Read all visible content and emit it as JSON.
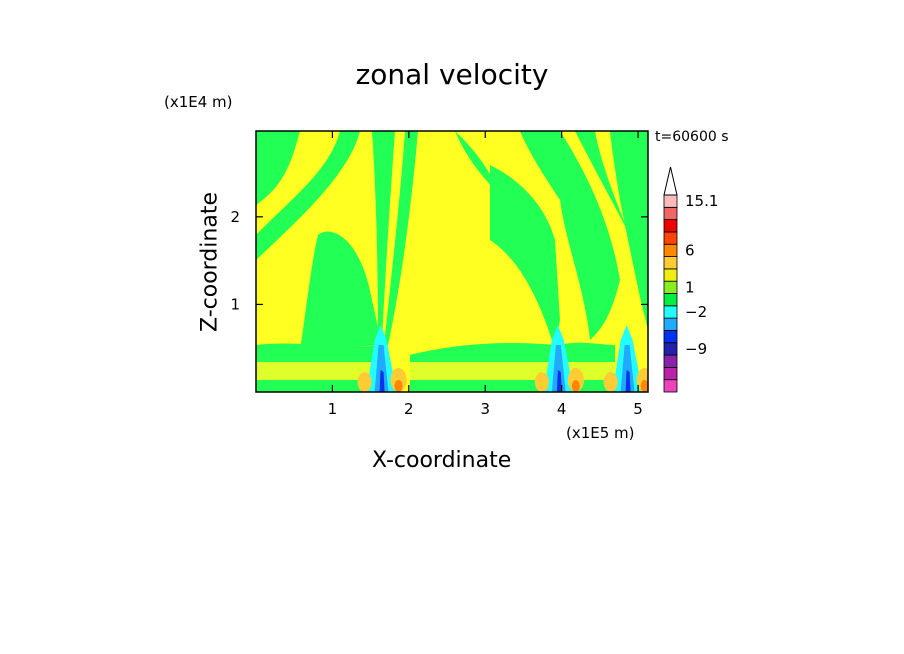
{
  "chart_data": {
    "type": "heatmap",
    "title": "zonal velocity",
    "xlabel": "X-coordinate",
    "ylabel": "Z-coordinate",
    "x_unit": "(x1E5 m)",
    "y_unit": "(x1E4 m)",
    "time_label": "t=60600 s",
    "xlim": [
      0,
      5.13
    ],
    "ylim": [
      0,
      2.98
    ],
    "x_ticks": [
      1,
      2,
      3,
      4,
      5
    ],
    "y_ticks": [
      1,
      2
    ],
    "colorbar": {
      "labels": [
        {
          "text": "15.1",
          "value": 15.1
        },
        {
          "text": "6",
          "value": 6
        },
        {
          "text": "1",
          "value": 1
        },
        {
          "text": "−2",
          "value": -2
        },
        {
          "text": "−9",
          "value": -9
        }
      ],
      "colors": [
        "#ee44bb",
        "#bb22aa",
        "#8822aa",
        "#2222aa",
        "#0033ee",
        "#22aaff",
        "#22ffff",
        "#00ee44",
        "#88ee22",
        "#eeee11",
        "#ffcc33",
        "#ff8800",
        "#ff4400",
        "#ee0000",
        "#ee6666",
        "#ffbbbb"
      ]
    },
    "mountain_x": [
      1.63,
      3.95,
      4.85
    ],
    "background_colors": {
      "green": "#22ff55",
      "yellow": "#ffff22"
    }
  }
}
